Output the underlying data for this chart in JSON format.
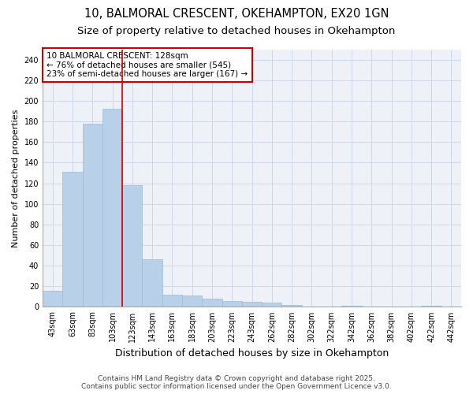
{
  "title1": "10, BALMORAL CRESCENT, OKEHAMPTON, EX20 1GN",
  "title2": "Size of property relative to detached houses in Okehampton",
  "xlabel": "Distribution of detached houses by size in Okehampton",
  "ylabel": "Number of detached properties",
  "categories": [
    "43sqm",
    "63sqm",
    "83sqm",
    "103sqm",
    "123sqm",
    "143sqm",
    "163sqm",
    "183sqm",
    "203sqm",
    "223sqm",
    "243sqm",
    "262sqm",
    "282sqm",
    "302sqm",
    "322sqm",
    "342sqm",
    "362sqm",
    "382sqm",
    "402sqm",
    "422sqm",
    "442sqm"
  ],
  "values": [
    16,
    131,
    178,
    192,
    118,
    46,
    12,
    11,
    8,
    6,
    5,
    4,
    2,
    0,
    0,
    1,
    0,
    0,
    0,
    1,
    0
  ],
  "bar_color": "#b8d0e8",
  "bar_edge_color": "#9bbdd4",
  "subject_line_index": 4,
  "subject_line_color": "#cc0000",
  "annotation_text": "10 BALMORAL CRESCENT: 128sqm\n← 76% of detached houses are smaller (545)\n23% of semi-detached houses are larger (167) →",
  "annotation_box_facecolor": "#ffffff",
  "annotation_box_edgecolor": "#cc0000",
  "ylim": [
    0,
    250
  ],
  "yticks": [
    0,
    20,
    40,
    60,
    80,
    100,
    120,
    140,
    160,
    180,
    200,
    220,
    240
  ],
  "grid_color": "#d0d8e8",
  "background_color": "#ffffff",
  "plot_bg_color": "#eef2f8",
  "footer1": "Contains HM Land Registry data © Crown copyright and database right 2025.",
  "footer2": "Contains public sector information licensed under the Open Government Licence v3.0.",
  "title1_fontsize": 10.5,
  "title2_fontsize": 9.5,
  "xlabel_fontsize": 9,
  "ylabel_fontsize": 8,
  "tick_fontsize": 7,
  "footer_fontsize": 6.5,
  "annotation_fontsize": 7.5
}
